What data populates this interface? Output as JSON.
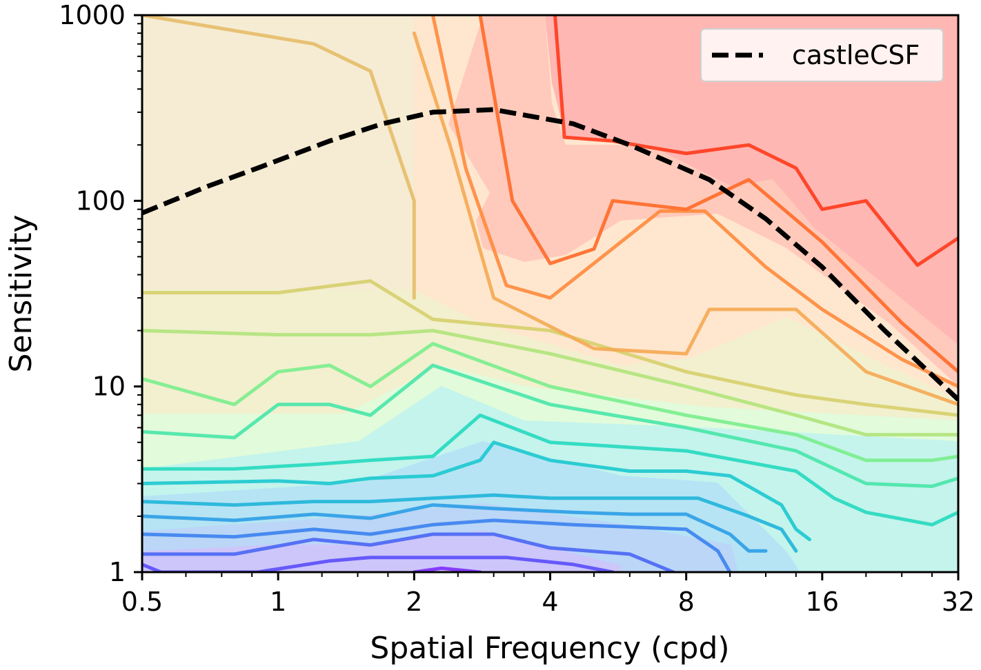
{
  "chart_data": {
    "type": "contour",
    "title": "",
    "xlabel": "Spatial Frequency (cpd)",
    "ylabel": "Sensitivity",
    "xscale": "log2",
    "yscale": "log10",
    "xlim": [
      0.5,
      32
    ],
    "ylim": [
      1,
      1000
    ],
    "xticks": [
      0.5,
      1,
      2,
      4,
      8,
      16,
      32
    ],
    "xtick_labels": [
      "0.5",
      "1",
      "2",
      "4",
      "8",
      "16",
      "32"
    ],
    "yticks": [
      1,
      10,
      100,
      1000
    ],
    "ytick_labels": [
      "1",
      "10",
      "100",
      "1000"
    ],
    "legend": {
      "location": "top-right",
      "entries": [
        "castleCSF"
      ]
    },
    "series": [
      {
        "name": "castleCSF",
        "style": "dashed",
        "color": "#000000",
        "x": [
          0.5,
          0.7,
          0.9,
          1.3,
          1.7,
          2.2,
          3.0,
          4.5,
          6.0,
          9.0,
          12.0,
          16.0,
          22.0,
          32.0
        ],
        "y": [
          86,
          120,
          150,
          210,
          260,
          300,
          310,
          260,
          200,
          130,
          80,
          44,
          20,
          8.5
        ]
      }
    ],
    "contour_colormap": "rainbow",
    "contour_levels": [
      {
        "color": "#7d2cff",
        "x": [
          2.0,
          2.3,
          2.8
        ],
        "y": [
          1.0,
          1.05,
          1.0
        ]
      },
      {
        "color": "#5b4cfa",
        "x": [
          0.5,
          0.55,
          0.9,
          1.3,
          1.6,
          2.2,
          3.2,
          4.5,
          5.5
        ],
        "y": [
          1.1,
          1.0,
          1.0,
          1.15,
          1.2,
          1.2,
          1.2,
          1.1,
          1.0
        ]
      },
      {
        "color": "#4a66f3",
        "x": [
          0.5,
          0.6,
          0.8,
          1.2,
          1.6,
          2.2,
          3.0,
          4.0,
          6.0,
          7.5
        ],
        "y": [
          1.25,
          1.25,
          1.25,
          1.5,
          1.4,
          1.6,
          1.6,
          1.35,
          1.25,
          1.0
        ]
      },
      {
        "color": "#3b82ee",
        "x": [
          0.5,
          0.8,
          1.2,
          1.6,
          2.2,
          3.0,
          4.5,
          6.0,
          8.0,
          9.4,
          10.0
        ],
        "y": [
          1.6,
          1.55,
          1.7,
          1.6,
          1.8,
          1.9,
          1.8,
          1.75,
          1.7,
          1.3,
          1.0
        ]
      },
      {
        "color": "#2c9de5",
        "x": [
          0.5,
          0.8,
          1.2,
          1.6,
          2.2,
          3.0,
          4.5,
          6.0,
          8.0,
          10.0,
          11.0,
          12.0
        ],
        "y": [
          2.0,
          1.9,
          2.05,
          1.95,
          2.3,
          2.2,
          2.1,
          2.05,
          2.05,
          1.6,
          1.3,
          1.3
        ]
      },
      {
        "color": "#1fb4d9",
        "x": [
          0.5,
          0.8,
          1.2,
          1.6,
          2.2,
          3.0,
          4.0,
          6.0,
          8.5,
          11.0,
          13.0,
          14.0
        ],
        "y": [
          2.4,
          2.3,
          2.4,
          2.4,
          2.5,
          2.6,
          2.5,
          2.5,
          2.5,
          2.0,
          1.7,
          1.3
        ]
      },
      {
        "color": "#1cc8cf",
        "x": [
          0.5,
          1.0,
          1.3,
          1.6,
          2.2,
          2.8,
          3.0,
          4.0,
          6.0,
          8.0,
          10.0,
          13.0,
          14.0,
          15.0
        ],
        "y": [
          3.0,
          3.1,
          3.0,
          3.2,
          3.3,
          4.0,
          5.0,
          4.0,
          3.5,
          3.5,
          3.3,
          2.3,
          1.7,
          1.5
        ]
      },
      {
        "color": "#25d9bf",
        "x": [
          0.5,
          0.8,
          1.2,
          1.6,
          2.2,
          2.8,
          4.0,
          8.0,
          14.0,
          17.0,
          20.0,
          28.0,
          32.0
        ],
        "y": [
          3.6,
          3.6,
          3.8,
          4.0,
          4.2,
          7.0,
          5.0,
          4.5,
          3.5,
          2.5,
          2.1,
          1.8,
          2.1
        ]
      },
      {
        "color": "#48e5a8",
        "x": [
          0.5,
          0.8,
          1.0,
          1.3,
          1.6,
          2.2,
          4.0,
          8.0,
          14.0,
          20.0,
          28.0,
          32.0
        ],
        "y": [
          5.7,
          5.3,
          8.0,
          8.0,
          7.0,
          13.0,
          8.0,
          6.0,
          4.5,
          3.0,
          2.9,
          3.2
        ]
      },
      {
        "color": "#7aed8c",
        "x": [
          0.5,
          0.8,
          1.0,
          1.3,
          1.6,
          2.2,
          4.0,
          8.0,
          14.0,
          20.0,
          28.0,
          32.0
        ],
        "y": [
          11.0,
          8.0,
          12.0,
          13.0,
          10.0,
          17.0,
          10.0,
          7.0,
          5.5,
          4.0,
          4.0,
          4.2
        ]
      },
      {
        "color": "#b0e37a",
        "x": [
          0.5,
          1.0,
          1.6,
          2.2,
          4.0,
          8.0,
          14.0,
          20.0,
          32.0
        ],
        "y": [
          20.0,
          19.0,
          19.0,
          20.0,
          15.0,
          10.0,
          7.0,
          5.5,
          5.5
        ]
      },
      {
        "color": "#d6cf6c",
        "x": [
          0.5,
          1.0,
          1.6,
          2.2,
          4.0,
          8.0,
          14.0,
          20.0,
          32.0
        ],
        "y": [
          32.0,
          32.0,
          37.0,
          23.0,
          20.0,
          12.0,
          9.0,
          8.0,
          7.0
        ]
      },
      {
        "color": "#e5bd68",
        "x": [
          0.4,
          0.5,
          1.2,
          1.6,
          2.0,
          2.0
        ],
        "y": [
          900,
          1000,
          700,
          500,
          100,
          30
        ]
      },
      {
        "color": "#f5a852",
        "x": [
          2.0,
          2.4,
          3.0,
          5.0,
          8.0,
          9.0,
          14.0,
          20.0,
          32.0
        ],
        "y": [
          800,
          200,
          30,
          16,
          15,
          26,
          26,
          12,
          8.0
        ]
      },
      {
        "color": "#ff8a3c",
        "x": [
          2.2,
          2.6,
          3.2,
          4.0,
          7.0,
          8.8,
          12.0,
          16.0,
          24.0,
          32.0
        ],
        "y": [
          1000,
          150,
          35,
          30,
          88,
          88,
          44,
          26,
          14,
          10
        ]
      },
      {
        "color": "#ff6a28",
        "x": [
          2.8,
          3.3,
          4.0,
          5.0,
          5.5,
          8.0,
          11.0,
          16.0,
          24.0,
          32.0
        ],
        "y": [
          1000,
          100,
          46,
          55,
          100,
          90,
          130,
          60,
          22,
          12
        ]
      },
      {
        "color": "#ff3a1b",
        "x": [
          4.1,
          4.3,
          5.5,
          8.0,
          11.0,
          14.0,
          16.0,
          20.0,
          26.0,
          32.0
        ],
        "y": [
          1000,
          220,
          210,
          180,
          200,
          150,
          90,
          100,
          45,
          63
        ]
      }
    ]
  }
}
